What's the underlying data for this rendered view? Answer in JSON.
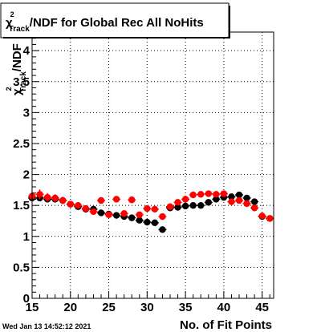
{
  "timestamp": "Wed Jan 13 14:52:12 2021",
  "chart_data": {
    "type": "scatter",
    "title": {
      "chi": "χ",
      "sup": "2",
      "sub": "Track",
      "rest": "/NDF for Global Rec All NoHits"
    },
    "ylabel": {
      "chi": "χ",
      "sup": "2",
      "sub": "Track",
      "rest": "/NDF"
    },
    "xlabel": "No. of Fit Points",
    "xlim": [
      15,
      46.5
    ],
    "ylim": [
      0,
      4.3
    ],
    "x_ticks": [
      15,
      20,
      25,
      30,
      35,
      40,
      45
    ],
    "x_tick_labels": [
      "15",
      "20",
      "25",
      "30",
      "35",
      "40",
      "45"
    ],
    "y_ticks": [
      0,
      0.5,
      1,
      1.5,
      2,
      2.5,
      3,
      3.5,
      4
    ],
    "y_tick_labels": [
      "0",
      "0.5",
      "1",
      "1.5",
      "2",
      "2.5",
      "3",
      "3.5",
      "4"
    ],
    "grid": true,
    "series": [
      {
        "color": "#000000",
        "points": [
          {
            "x": 15,
            "y": 1.62,
            "err": 0.05
          },
          {
            "x": 16,
            "y": 1.62,
            "err": 0.05
          },
          {
            "x": 17,
            "y": 1.6,
            "err": 0.04
          },
          {
            "x": 18,
            "y": 1.6,
            "err": 0.04
          },
          {
            "x": 19,
            "y": 1.58,
            "err": 0.04
          },
          {
            "x": 20,
            "y": 1.52,
            "err": 0.04
          },
          {
            "x": 21,
            "y": 1.48,
            "err": 0.04
          },
          {
            "x": 22,
            "y": 1.44,
            "err": 0.04
          },
          {
            "x": 23,
            "y": 1.44,
            "err": 0.04
          },
          {
            "x": 24,
            "y": 1.38,
            "err": 0.04
          },
          {
            "x": 25,
            "y": 1.36,
            "err": 0.04
          },
          {
            "x": 26,
            "y": 1.34,
            "err": 0.04
          },
          {
            "x": 27,
            "y": 1.32,
            "err": 0.04
          },
          {
            "x": 28,
            "y": 1.3,
            "err": 0.04
          },
          {
            "x": 29,
            "y": 1.26,
            "err": 0.04
          },
          {
            "x": 30,
            "y": 1.23,
            "err": 0.04
          },
          {
            "x": 31,
            "y": 1.22,
            "err": 0.04
          },
          {
            "x": 32,
            "y": 1.11,
            "err": 0.04
          },
          {
            "x": 33,
            "y": 1.46,
            "err": 0.04
          },
          {
            "x": 34,
            "y": 1.47,
            "err": 0.04
          },
          {
            "x": 35,
            "y": 1.49,
            "err": 0.04
          },
          {
            "x": 36,
            "y": 1.5,
            "err": 0.04
          },
          {
            "x": 37,
            "y": 1.5,
            "err": 0.04
          },
          {
            "x": 38,
            "y": 1.55,
            "err": 0.04
          },
          {
            "x": 39,
            "y": 1.6,
            "err": 0.04
          },
          {
            "x": 40,
            "y": 1.63,
            "err": 0.04
          },
          {
            "x": 41,
            "y": 1.64,
            "err": 0.04
          },
          {
            "x": 42,
            "y": 1.67,
            "err": 0.04
          },
          {
            "x": 43,
            "y": 1.62,
            "err": 0.04
          },
          {
            "x": 44,
            "y": 1.56,
            "err": 0.04
          },
          {
            "x": 45,
            "y": 1.32,
            "err": 0.04
          },
          {
            "x": 46,
            "y": 1.29,
            "err": 0.04
          }
        ]
      },
      {
        "color": "#ff0000",
        "points": [
          {
            "x": 15,
            "y": 1.65,
            "err": 0.07
          },
          {
            "x": 16,
            "y": 1.68,
            "err": 0.08
          },
          {
            "x": 17,
            "y": 1.63,
            "err": 0.07
          },
          {
            "x": 18,
            "y": 1.62,
            "err": 0.06
          },
          {
            "x": 19,
            "y": 1.58,
            "err": 0.06
          },
          {
            "x": 20,
            "y": 1.52,
            "err": 0.05
          },
          {
            "x": 21,
            "y": 1.5,
            "err": 0.05
          },
          {
            "x": 22,
            "y": 1.45,
            "err": 0.05
          },
          {
            "x": 23,
            "y": 1.4,
            "err": 0.05
          },
          {
            "x": 24,
            "y": 1.58,
            "err": 0.05
          },
          {
            "x": 25,
            "y": 1.35,
            "err": 0.05
          },
          {
            "x": 26,
            "y": 1.6,
            "err": 0.05
          },
          {
            "x": 27,
            "y": 1.37,
            "err": 0.05
          },
          {
            "x": 28,
            "y": 1.59,
            "err": 0.05
          },
          {
            "x": 29,
            "y": 1.35,
            "err": 0.05
          },
          {
            "x": 30,
            "y": 1.45,
            "err": 0.05
          },
          {
            "x": 31,
            "y": 1.44,
            "err": 0.05
          },
          {
            "x": 32,
            "y": 1.32,
            "err": 0.05
          },
          {
            "x": 33,
            "y": 1.48,
            "err": 0.05
          },
          {
            "x": 34,
            "y": 1.55,
            "err": 0.05
          },
          {
            "x": 35,
            "y": 1.6,
            "err": 0.05
          },
          {
            "x": 36,
            "y": 1.67,
            "err": 0.05
          },
          {
            "x": 37,
            "y": 1.68,
            "err": 0.05
          },
          {
            "x": 38,
            "y": 1.69,
            "err": 0.05
          },
          {
            "x": 39,
            "y": 1.68,
            "err": 0.05
          },
          {
            "x": 40,
            "y": 1.69,
            "err": 0.05
          },
          {
            "x": 41,
            "y": 1.56,
            "err": 0.05
          },
          {
            "x": 42,
            "y": 1.58,
            "err": 0.05
          },
          {
            "x": 43,
            "y": 1.53,
            "err": 0.05
          },
          {
            "x": 44,
            "y": 1.46,
            "err": 0.05
          },
          {
            "x": 45,
            "y": 1.33,
            "err": 0.05
          },
          {
            "x": 46,
            "y": 1.29,
            "err": 0.05
          }
        ]
      }
    ]
  }
}
